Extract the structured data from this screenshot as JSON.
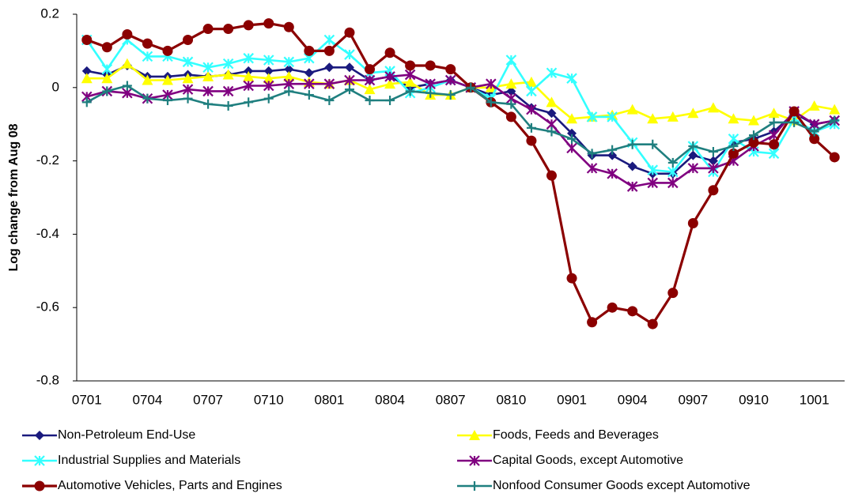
{
  "chart_data": {
    "type": "line",
    "y_axis_label": "Log change from Aug 08",
    "categories": [
      "0701",
      null,
      null,
      "0704",
      null,
      null,
      "0707",
      null,
      null,
      "0710",
      null,
      null,
      "0801",
      null,
      null,
      "0804",
      null,
      null,
      "0807",
      null,
      null,
      "0810",
      null,
      null,
      "0901",
      null,
      null,
      "0904",
      null,
      null,
      "0907",
      null,
      null,
      "0910",
      null,
      null,
      "1001",
      null
    ],
    "ylim": [
      -0.8,
      0.2
    ],
    "yticks": [
      0.2,
      0,
      -0.2,
      -0.4,
      -0.6,
      -0.8
    ],
    "grid": false,
    "legend": "bottom",
    "series": [
      {
        "name": "Non-Petroleum End-Use",
        "color": "#1a1a7e",
        "marker": "diamond",
        "values": [
          0.045,
          0.035,
          0.06,
          0.03,
          0.03,
          0.035,
          0.03,
          0.035,
          0.045,
          0.045,
          0.05,
          0.04,
          0.055,
          0.055,
          0.02,
          0.03,
          0,
          0.01,
          0.02,
          0,
          -0.02,
          -0.01,
          -0.055,
          -0.07,
          -0.125,
          -0.185,
          -0.185,
          -0.215,
          -0.235,
          -0.235,
          -0.185,
          -0.2,
          -0.15,
          -0.14,
          -0.12,
          -0.07,
          -0.1,
          -0.09
        ]
      },
      {
        "name": "Foods, Feeds and Beverages",
        "color": "#ffff00",
        "marker": "triangle",
        "values": [
          0.025,
          0.025,
          0.065,
          0.02,
          0.02,
          0.025,
          0.03,
          0.035,
          0.03,
          0.025,
          0.03,
          0.015,
          0.01,
          0.02,
          -0.005,
          0.01,
          0.015,
          -0.02,
          -0.02,
          0,
          0,
          0.01,
          0.015,
          -0.04,
          -0.085,
          -0.08,
          -0.075,
          -0.06,
          -0.085,
          -0.08,
          -0.07,
          -0.055,
          -0.085,
          -0.09,
          -0.07,
          -0.09,
          -0.05,
          -0.06
        ]
      },
      {
        "name": "Industrial Supplies and Materials",
        "color": "#33ffff",
        "marker": "star",
        "values": [
          0.13,
          0.05,
          0.13,
          0.085,
          0.085,
          0.07,
          0.055,
          0.065,
          0.08,
          0.075,
          0.07,
          0.08,
          0.13,
          0.09,
          0.04,
          0.045,
          -0.015,
          0,
          0.02,
          0,
          -0.03,
          0.075,
          -0.01,
          0.04,
          0.025,
          -0.08,
          -0.08,
          -0.15,
          -0.225,
          -0.23,
          -0.16,
          -0.23,
          -0.14,
          -0.175,
          -0.18,
          -0.085,
          -0.12,
          -0.1
        ]
      },
      {
        "name": "Capital Goods, except Automotive",
        "color": "#800080",
        "marker": "star",
        "values": [
          -0.025,
          -0.01,
          -0.015,
          -0.03,
          -0.02,
          -0.005,
          -0.01,
          -0.01,
          0.005,
          0.005,
          0.01,
          0.01,
          0.01,
          0.02,
          0.02,
          0.03,
          0.035,
          0.01,
          0.02,
          0,
          0.01,
          -0.03,
          -0.06,
          -0.1,
          -0.165,
          -0.22,
          -0.235,
          -0.27,
          -0.26,
          -0.26,
          -0.22,
          -0.22,
          -0.2,
          -0.16,
          -0.13,
          -0.065,
          -0.1,
          -0.09
        ]
      },
      {
        "name": "Automotive Vehicles, Parts and Engines",
        "color": "#8b0000",
        "marker": "circle",
        "values": [
          0.13,
          0.11,
          0.145,
          0.12,
          0.1,
          0.13,
          0.16,
          0.16,
          0.17,
          0.175,
          0.165,
          0.1,
          0.1,
          0.15,
          0.05,
          0.095,
          0.06,
          0.06,
          0.05,
          0,
          -0.04,
          -0.08,
          -0.145,
          -0.24,
          -0.52,
          -0.64,
          -0.6,
          -0.61,
          -0.645,
          -0.56,
          -0.37,
          -0.28,
          -0.18,
          -0.15,
          -0.155,
          -0.065,
          -0.14,
          -0.19
        ]
      },
      {
        "name": "Nonfood Consumer Goods except Automotive",
        "color": "#1f7f7f",
        "marker": "plus",
        "values": [
          -0.04,
          -0.01,
          0.005,
          -0.03,
          -0.035,
          -0.03,
          -0.045,
          -0.05,
          -0.04,
          -0.03,
          -0.01,
          -0.02,
          -0.035,
          -0.005,
          -0.035,
          -0.035,
          -0.01,
          -0.015,
          -0.02,
          0,
          -0.04,
          -0.045,
          -0.11,
          -0.12,
          -0.14,
          -0.18,
          -0.17,
          -0.155,
          -0.155,
          -0.205,
          -0.16,
          -0.175,
          -0.16,
          -0.13,
          -0.095,
          -0.095,
          -0.12,
          -0.09
        ]
      }
    ]
  }
}
